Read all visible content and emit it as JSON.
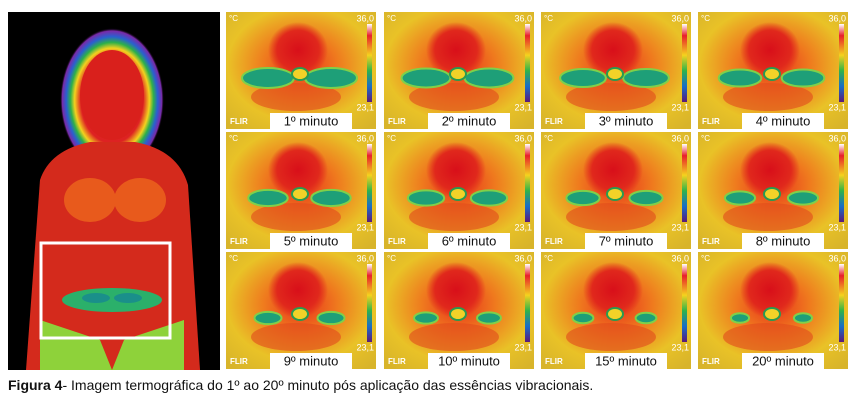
{
  "figure": {
    "panels": [
      {
        "label": "1º minuto",
        "unit": "°C",
        "max": "36,0",
        "min": "23,1",
        "brand": "FLIR"
      },
      {
        "label": "2º minuto",
        "unit": "°C",
        "max": "36,0",
        "min": "23,1",
        "brand": "FLIR"
      },
      {
        "label": "3º minuto",
        "unit": "°C",
        "max": "36,0",
        "min": "23,1",
        "brand": "FLIR"
      },
      {
        "label": "4º minuto",
        "unit": "°C",
        "max": "36,0",
        "min": "23,1",
        "brand": "FLIR"
      },
      {
        "label": "5º minuto",
        "unit": "°C",
        "max": "36,0",
        "min": "23,1",
        "brand": "FLIR"
      },
      {
        "label": "6º minuto",
        "unit": "°C",
        "max": "36,0",
        "min": "23,1",
        "brand": "FLIR"
      },
      {
        "label": "7º minuto",
        "unit": "°C",
        "max": "36,0",
        "min": "23,1",
        "brand": "FLIR"
      },
      {
        "label": "8º minuto",
        "unit": "°C",
        "max": "36,0",
        "min": "23,1",
        "brand": "FLIR"
      },
      {
        "label": "9º minuto",
        "unit": "°C",
        "max": "36,0",
        "min": "23,1",
        "brand": "FLIR"
      },
      {
        "label": "10º minuto",
        "unit": "°C",
        "max": "36,0",
        "min": "23,1",
        "brand": "FLIR"
      },
      {
        "label": "15º minuto",
        "unit": "°C",
        "max": "36,0",
        "min": "23,1",
        "brand": "FLIR"
      },
      {
        "label": "20º minuto",
        "unit": "°C",
        "max": "36,0",
        "min": "23,1",
        "brand": "FLIR"
      }
    ],
    "caption": {
      "label": "Figura 4",
      "text": "- Imagem termográfica do 1º ao 20º minuto pós aplicação das essências vibracionais."
    }
  }
}
